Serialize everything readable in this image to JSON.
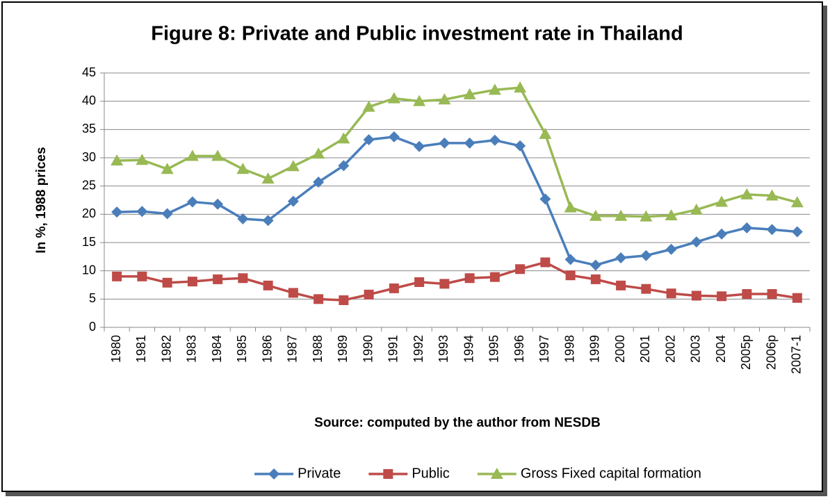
{
  "chart_data": {
    "type": "line",
    "title": "Figure 8: Private and Public investment rate in Thailand",
    "ylabel": "In %, 1988 prices",
    "xlabel": "Source:  computed by the author from  NESDB",
    "categories": [
      "1980",
      "1981",
      "1982",
      "1983",
      "1984",
      "1985",
      "1986",
      "1987",
      "1988",
      "1989",
      "1990",
      "1991",
      "1992",
      "1993",
      "1994",
      "1995",
      "1996",
      "1997",
      "1998",
      "1999",
      "2000",
      "2001",
      "2002",
      "2003",
      "2004",
      "2005p",
      "2006p",
      "2007-1"
    ],
    "series": [
      {
        "name": "Private",
        "color": "#4a7ebb",
        "marker": "diamond",
        "values": [
          20.4,
          20.5,
          20.1,
          22.2,
          21.8,
          19.2,
          18.9,
          22.3,
          25.7,
          28.6,
          33.2,
          33.7,
          32.0,
          32.6,
          32.6,
          33.1,
          32.1,
          22.7,
          12.0,
          11.0,
          12.3,
          12.7,
          13.8,
          15.1,
          16.5,
          17.6,
          17.3,
          16.9
        ]
      },
      {
        "name": "Public",
        "color": "#be4b48",
        "marker": "square",
        "values": [
          9.0,
          9.0,
          7.9,
          8.1,
          8.5,
          8.7,
          7.4,
          6.1,
          5.0,
          4.8,
          5.8,
          6.9,
          8.0,
          7.7,
          8.7,
          8.9,
          10.3,
          11.5,
          9.2,
          8.5,
          7.4,
          6.8,
          6.0,
          5.6,
          5.5,
          5.9,
          5.9,
          5.2
        ]
      },
      {
        "name": "Gross Fixed capital formation",
        "color": "#98b954",
        "marker": "triangle",
        "values": [
          29.5,
          29.6,
          28.0,
          30.3,
          30.3,
          28.0,
          26.3,
          28.5,
          30.7,
          33.4,
          39.0,
          40.5,
          40.0,
          40.3,
          41.2,
          42.0,
          42.4,
          34.2,
          21.2,
          19.7,
          19.7,
          19.6,
          19.8,
          20.8,
          22.2,
          23.5,
          23.3,
          22.1
        ]
      }
    ],
    "ylim": [
      0,
      45
    ],
    "yticks": [
      0,
      5,
      10,
      15,
      20,
      25,
      30,
      35,
      40,
      45
    ],
    "grid": true,
    "legend": "bottom"
  }
}
